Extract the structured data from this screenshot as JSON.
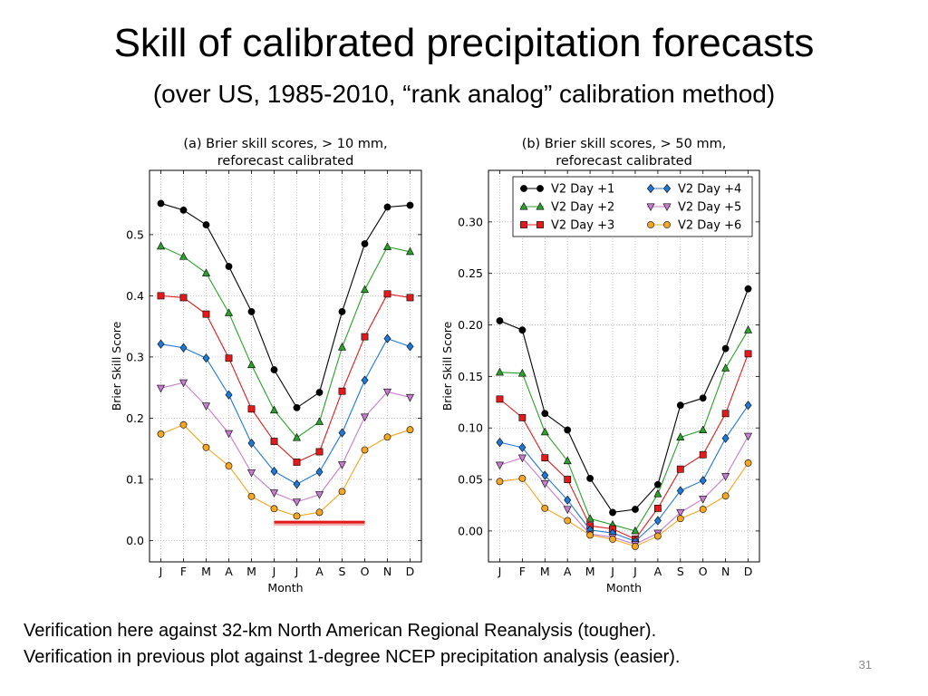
{
  "slide": {
    "title": "Skill of calibrated precipitation forecasts",
    "subtitle": "(over US, 1985-2010, “rank analog” calibration method)",
    "notes": [
      "Verification here against 32-km North American Regional Reanalysis (tougher).",
      "Verification in previous plot against 1-degree NCEP precipitation analysis (easier)."
    ],
    "page_number": "31"
  },
  "chart_data": [
    {
      "type": "line",
      "title_lines": [
        "(a) Brier skill scores, > 10 mm,",
        "reforecast calibrated"
      ],
      "xlabel": "Month",
      "ylabel": "Brier Skill Score",
      "categories": [
        "J",
        "F",
        "M",
        "A",
        "M",
        "J",
        "J",
        "A",
        "S",
        "O",
        "N",
        "D"
      ],
      "ylim": [
        -0.035,
        0.605
      ],
      "yticks": [
        "0.0",
        "0.1",
        "0.2",
        "0.3",
        "0.4",
        "0.5"
      ],
      "grid": true,
      "annotation": {
        "type": "horizontal-bar",
        "color": "#e31a1c",
        "x_from": "J",
        "x_to": "O",
        "y": 0.03
      },
      "series": [
        {
          "name": "V2 Day +1",
          "color": "#000000",
          "marker": "circle",
          "values": [
            0.551,
            0.54,
            0.516,
            0.448,
            0.374,
            0.279,
            0.217,
            0.242,
            0.374,
            0.485,
            0.545,
            0.548
          ]
        },
        {
          "name": "V2 Day +2",
          "color": "#2ca02c",
          "marker": "triangle-up",
          "values": [
            0.481,
            0.464,
            0.437,
            0.372,
            0.287,
            0.213,
            0.168,
            0.194,
            0.316,
            0.41,
            0.48,
            0.472
          ]
        },
        {
          "name": "V2 Day +3",
          "color": "#e31a1c",
          "marker": "square",
          "values": [
            0.4,
            0.397,
            0.37,
            0.298,
            0.215,
            0.162,
            0.128,
            0.145,
            0.244,
            0.333,
            0.403,
            0.397
          ]
        },
        {
          "name": "V2 Day +4",
          "color": "#1f78d4",
          "marker": "diamond",
          "values": [
            0.321,
            0.315,
            0.298,
            0.238,
            0.159,
            0.113,
            0.092,
            0.112,
            0.176,
            0.262,
            0.33,
            0.317
          ]
        },
        {
          "name": "V2 Day +5",
          "color": "#c77cce",
          "marker": "triangle-down",
          "values": [
            0.249,
            0.258,
            0.22,
            0.175,
            0.111,
            0.078,
            0.063,
            0.075,
            0.124,
            0.202,
            0.243,
            0.234
          ]
        },
        {
          "name": "V2 Day +6",
          "color": "#f5a623",
          "marker": "circle",
          "values": [
            0.174,
            0.189,
            0.152,
            0.122,
            0.072,
            0.052,
            0.04,
            0.046,
            0.08,
            0.148,
            0.169,
            0.181
          ]
        }
      ]
    },
    {
      "type": "line",
      "title_lines": [
        "(b) Brier skill scores, > 50 mm,",
        "reforecast calibrated"
      ],
      "xlabel": "Month",
      "ylabel": "Brier Skill Score",
      "categories": [
        "J",
        "F",
        "M",
        "A",
        "M",
        "J",
        "J",
        "A",
        "S",
        "O",
        "N",
        "D"
      ],
      "ylim": [
        -0.03,
        0.35
      ],
      "yticks": [
        "0.00",
        "0.05",
        "0.10",
        "0.15",
        "0.20",
        "0.25",
        "0.30"
      ],
      "grid": true,
      "legend": {
        "placement": "top",
        "columns": 2
      },
      "series": [
        {
          "name": "V2 Day +1",
          "color": "#000000",
          "marker": "circle",
          "values": [
            0.204,
            0.195,
            0.114,
            0.098,
            0.051,
            0.018,
            0.021,
            0.045,
            0.122,
            0.129,
            0.177,
            0.235
          ]
        },
        {
          "name": "V2 Day +2",
          "color": "#2ca02c",
          "marker": "triangle-up",
          "values": [
            0.154,
            0.153,
            0.096,
            0.068,
            0.012,
            0.006,
            0.0,
            0.036,
            0.091,
            0.098,
            0.158,
            0.195
          ]
        },
        {
          "name": "V2 Day +3",
          "color": "#e31a1c",
          "marker": "square",
          "values": [
            0.128,
            0.11,
            0.071,
            0.05,
            0.005,
            0.002,
            -0.008,
            0.022,
            0.06,
            0.074,
            0.114,
            0.172
          ]
        },
        {
          "name": "V2 Day +4",
          "color": "#1f78d4",
          "marker": "diamond",
          "values": [
            0.086,
            0.081,
            0.054,
            0.03,
            0.001,
            -0.002,
            -0.01,
            0.01,
            0.039,
            0.049,
            0.09,
            0.122
          ]
        },
        {
          "name": "V2 Day +5",
          "color": "#c77cce",
          "marker": "triangle-down",
          "values": [
            0.064,
            0.071,
            0.046,
            0.021,
            -0.003,
            -0.006,
            -0.013,
            -0.002,
            0.018,
            0.031,
            0.053,
            0.092
          ]
        },
        {
          "name": "V2 Day +6",
          "color": "#f5a623",
          "marker": "circle",
          "values": [
            0.048,
            0.051,
            0.022,
            0.01,
            -0.004,
            -0.008,
            -0.015,
            -0.005,
            0.012,
            0.021,
            0.034,
            0.066
          ]
        }
      ]
    }
  ]
}
